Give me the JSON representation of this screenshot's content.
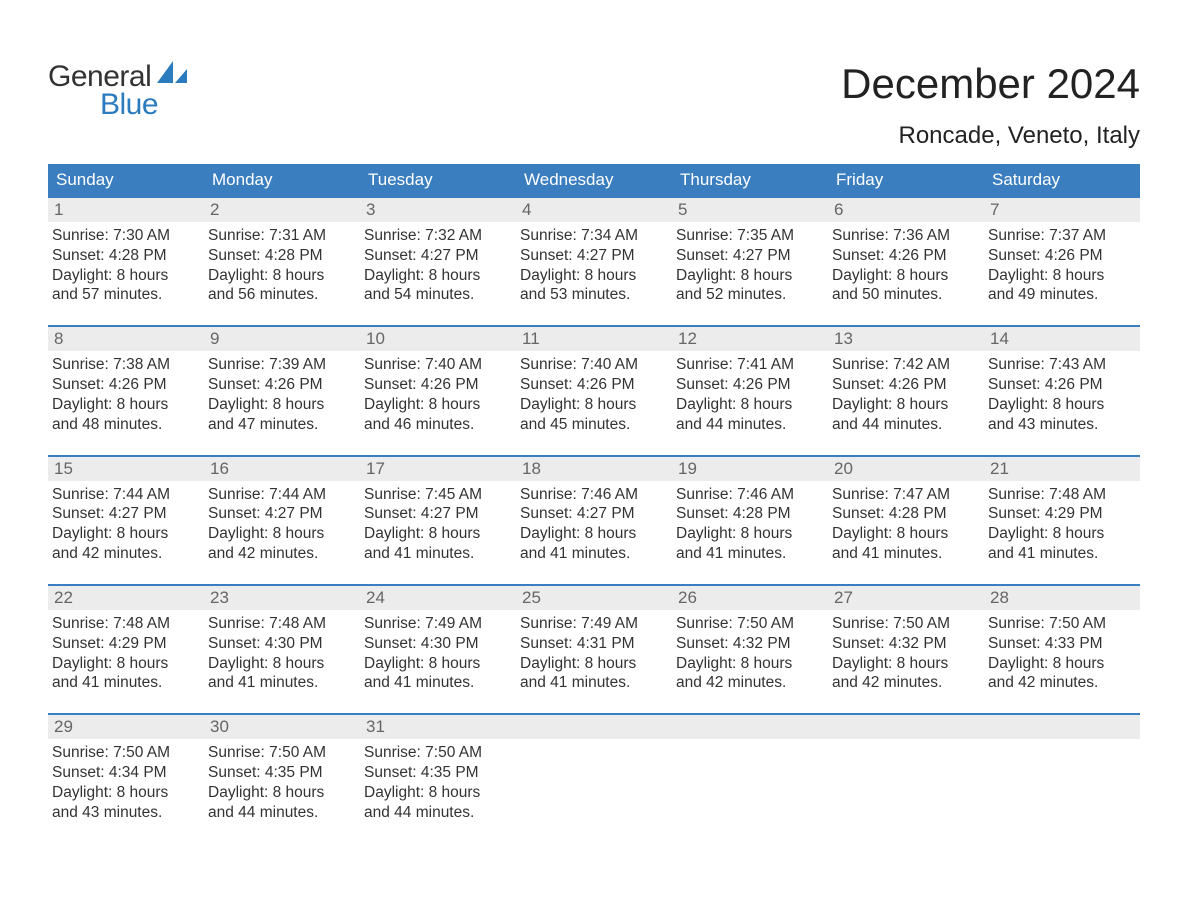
{
  "brand": {
    "word1": "General",
    "word2": "Blue",
    "text_color": "#333333",
    "accent_color": "#2b7bbf"
  },
  "title": "December 2024",
  "location": "Roncade, Veneto, Italy",
  "colors": {
    "header_bg": "#3a7ebf",
    "header_text": "#ffffff",
    "daynum_bg": "#ececec",
    "daynum_text": "#666666",
    "body_text": "#333333",
    "week_border": "#3a7ebf",
    "page_bg": "#ffffff"
  },
  "typography": {
    "title_fontsize": 42,
    "location_fontsize": 24,
    "dow_fontsize": 17,
    "daynum_fontsize": 17,
    "body_fontsize": 15.5,
    "font_family": "Arial, Helvetica, sans-serif"
  },
  "days_of_week": [
    "Sunday",
    "Monday",
    "Tuesday",
    "Wednesday",
    "Thursday",
    "Friday",
    "Saturday"
  ],
  "weeks": [
    [
      {
        "n": "1",
        "sunrise": "Sunrise: 7:30 AM",
        "sunset": "Sunset: 4:28 PM",
        "d1": "Daylight: 8 hours",
        "d2": "and 57 minutes."
      },
      {
        "n": "2",
        "sunrise": "Sunrise: 7:31 AM",
        "sunset": "Sunset: 4:28 PM",
        "d1": "Daylight: 8 hours",
        "d2": "and 56 minutes."
      },
      {
        "n": "3",
        "sunrise": "Sunrise: 7:32 AM",
        "sunset": "Sunset: 4:27 PM",
        "d1": "Daylight: 8 hours",
        "d2": "and 54 minutes."
      },
      {
        "n": "4",
        "sunrise": "Sunrise: 7:34 AM",
        "sunset": "Sunset: 4:27 PM",
        "d1": "Daylight: 8 hours",
        "d2": "and 53 minutes."
      },
      {
        "n": "5",
        "sunrise": "Sunrise: 7:35 AM",
        "sunset": "Sunset: 4:27 PM",
        "d1": "Daylight: 8 hours",
        "d2": "and 52 minutes."
      },
      {
        "n": "6",
        "sunrise": "Sunrise: 7:36 AM",
        "sunset": "Sunset: 4:26 PM",
        "d1": "Daylight: 8 hours",
        "d2": "and 50 minutes."
      },
      {
        "n": "7",
        "sunrise": "Sunrise: 7:37 AM",
        "sunset": "Sunset: 4:26 PM",
        "d1": "Daylight: 8 hours",
        "d2": "and 49 minutes."
      }
    ],
    [
      {
        "n": "8",
        "sunrise": "Sunrise: 7:38 AM",
        "sunset": "Sunset: 4:26 PM",
        "d1": "Daylight: 8 hours",
        "d2": "and 48 minutes."
      },
      {
        "n": "9",
        "sunrise": "Sunrise: 7:39 AM",
        "sunset": "Sunset: 4:26 PM",
        "d1": "Daylight: 8 hours",
        "d2": "and 47 minutes."
      },
      {
        "n": "10",
        "sunrise": "Sunrise: 7:40 AM",
        "sunset": "Sunset: 4:26 PM",
        "d1": "Daylight: 8 hours",
        "d2": "and 46 minutes."
      },
      {
        "n": "11",
        "sunrise": "Sunrise: 7:40 AM",
        "sunset": "Sunset: 4:26 PM",
        "d1": "Daylight: 8 hours",
        "d2": "and 45 minutes."
      },
      {
        "n": "12",
        "sunrise": "Sunrise: 7:41 AM",
        "sunset": "Sunset: 4:26 PM",
        "d1": "Daylight: 8 hours",
        "d2": "and 44 minutes."
      },
      {
        "n": "13",
        "sunrise": "Sunrise: 7:42 AM",
        "sunset": "Sunset: 4:26 PM",
        "d1": "Daylight: 8 hours",
        "d2": "and 44 minutes."
      },
      {
        "n": "14",
        "sunrise": "Sunrise: 7:43 AM",
        "sunset": "Sunset: 4:26 PM",
        "d1": "Daylight: 8 hours",
        "d2": "and 43 minutes."
      }
    ],
    [
      {
        "n": "15",
        "sunrise": "Sunrise: 7:44 AM",
        "sunset": "Sunset: 4:27 PM",
        "d1": "Daylight: 8 hours",
        "d2": "and 42 minutes."
      },
      {
        "n": "16",
        "sunrise": "Sunrise: 7:44 AM",
        "sunset": "Sunset: 4:27 PM",
        "d1": "Daylight: 8 hours",
        "d2": "and 42 minutes."
      },
      {
        "n": "17",
        "sunrise": "Sunrise: 7:45 AM",
        "sunset": "Sunset: 4:27 PM",
        "d1": "Daylight: 8 hours",
        "d2": "and 41 minutes."
      },
      {
        "n": "18",
        "sunrise": "Sunrise: 7:46 AM",
        "sunset": "Sunset: 4:27 PM",
        "d1": "Daylight: 8 hours",
        "d2": "and 41 minutes."
      },
      {
        "n": "19",
        "sunrise": "Sunrise: 7:46 AM",
        "sunset": "Sunset: 4:28 PM",
        "d1": "Daylight: 8 hours",
        "d2": "and 41 minutes."
      },
      {
        "n": "20",
        "sunrise": "Sunrise: 7:47 AM",
        "sunset": "Sunset: 4:28 PM",
        "d1": "Daylight: 8 hours",
        "d2": "and 41 minutes."
      },
      {
        "n": "21",
        "sunrise": "Sunrise: 7:48 AM",
        "sunset": "Sunset: 4:29 PM",
        "d1": "Daylight: 8 hours",
        "d2": "and 41 minutes."
      }
    ],
    [
      {
        "n": "22",
        "sunrise": "Sunrise: 7:48 AM",
        "sunset": "Sunset: 4:29 PM",
        "d1": "Daylight: 8 hours",
        "d2": "and 41 minutes."
      },
      {
        "n": "23",
        "sunrise": "Sunrise: 7:48 AM",
        "sunset": "Sunset: 4:30 PM",
        "d1": "Daylight: 8 hours",
        "d2": "and 41 minutes."
      },
      {
        "n": "24",
        "sunrise": "Sunrise: 7:49 AM",
        "sunset": "Sunset: 4:30 PM",
        "d1": "Daylight: 8 hours",
        "d2": "and 41 minutes."
      },
      {
        "n": "25",
        "sunrise": "Sunrise: 7:49 AM",
        "sunset": "Sunset: 4:31 PM",
        "d1": "Daylight: 8 hours",
        "d2": "and 41 minutes."
      },
      {
        "n": "26",
        "sunrise": "Sunrise: 7:50 AM",
        "sunset": "Sunset: 4:32 PM",
        "d1": "Daylight: 8 hours",
        "d2": "and 42 minutes."
      },
      {
        "n": "27",
        "sunrise": "Sunrise: 7:50 AM",
        "sunset": "Sunset: 4:32 PM",
        "d1": "Daylight: 8 hours",
        "d2": "and 42 minutes."
      },
      {
        "n": "28",
        "sunrise": "Sunrise: 7:50 AM",
        "sunset": "Sunset: 4:33 PM",
        "d1": "Daylight: 8 hours",
        "d2": "and 42 minutes."
      }
    ],
    [
      {
        "n": "29",
        "sunrise": "Sunrise: 7:50 AM",
        "sunset": "Sunset: 4:34 PM",
        "d1": "Daylight: 8 hours",
        "d2": "and 43 minutes."
      },
      {
        "n": "30",
        "sunrise": "Sunrise: 7:50 AM",
        "sunset": "Sunset: 4:35 PM",
        "d1": "Daylight: 8 hours",
        "d2": "and 44 minutes."
      },
      {
        "n": "31",
        "sunrise": "Sunrise: 7:50 AM",
        "sunset": "Sunset: 4:35 PM",
        "d1": "Daylight: 8 hours",
        "d2": "and 44 minutes."
      },
      {
        "empty": true
      },
      {
        "empty": true
      },
      {
        "empty": true
      },
      {
        "empty": true
      }
    ]
  ]
}
